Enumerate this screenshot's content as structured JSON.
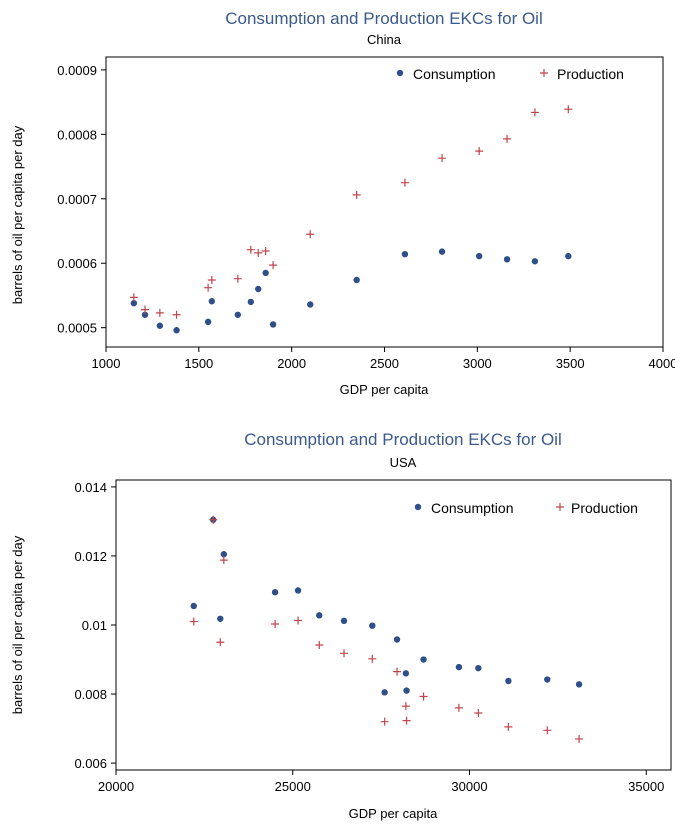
{
  "colors": {
    "consumption": "#2f4f8a",
    "production": "#c0464a",
    "title": "#3b5a8c"
  },
  "chart_data": [
    {
      "type": "scatter",
      "title": "Consumption and Production EKCs for Oil",
      "subtitle": "China",
      "xlabel": "GDP per capita",
      "ylabel": "barrels of oil per capita per day",
      "xlim": [
        1000,
        4000
      ],
      "ylim": [
        0.00047,
        0.00092
      ],
      "xticks": [
        1000,
        1500,
        2000,
        2500,
        3000,
        3500,
        4000
      ],
      "xtick_labels": [
        "1000",
        "1500",
        "2000",
        "2500",
        "3000",
        "3500",
        "4000"
      ],
      "yticks": [
        0.0005,
        0.0006,
        0.0007,
        0.0008,
        0.0009
      ],
      "ytick_labels": [
        "0.0005",
        "0.0006",
        "0.0007",
        "0.0008",
        "0.0009"
      ],
      "legend_position": "top-right",
      "series": [
        {
          "name": "Consumption",
          "marker": "circle",
          "points": [
            [
              1150,
              0.000538
            ],
            [
              1210,
              0.00052
            ],
            [
              1290,
              0.000503
            ],
            [
              1380,
              0.000496
            ],
            [
              1550,
              0.000509
            ],
            [
              1570,
              0.000541
            ],
            [
              1710,
              0.00052
            ],
            [
              1780,
              0.00054
            ],
            [
              1820,
              0.00056
            ],
            [
              1860,
              0.000585
            ],
            [
              1900,
              0.000505
            ],
            [
              2100,
              0.000536
            ],
            [
              2350,
              0.000574
            ],
            [
              2610,
              0.000614
            ],
            [
              2810,
              0.000618
            ],
            [
              3010,
              0.000611
            ],
            [
              3160,
              0.000606
            ],
            [
              3310,
              0.000603
            ],
            [
              3490,
              0.000611
            ]
          ]
        },
        {
          "name": "Production",
          "marker": "plus",
          "points": [
            [
              1150,
              0.000547
            ],
            [
              1210,
              0.000528
            ],
            [
              1290,
              0.000523
            ],
            [
              1380,
              0.00052
            ],
            [
              1550,
              0.000562
            ],
            [
              1570,
              0.000574
            ],
            [
              1710,
              0.000576
            ],
            [
              1780,
              0.000621
            ],
            [
              1820,
              0.000616
            ],
            [
              1860,
              0.000619
            ],
            [
              1900,
              0.000597
            ],
            [
              2100,
              0.000645
            ],
            [
              2350,
              0.000706
            ],
            [
              2610,
              0.000725
            ],
            [
              2810,
              0.000763
            ],
            [
              3010,
              0.000774
            ],
            [
              3160,
              0.000793
            ],
            [
              3310,
              0.000834
            ],
            [
              3490,
              0.000839
            ]
          ]
        }
      ]
    },
    {
      "type": "scatter",
      "title": "Consumption and Production EKCs for Oil",
      "subtitle": "USA",
      "xlabel": "GDP per capita",
      "ylabel": "barrels of oil per capita per day",
      "xlim": [
        20000,
        35700
      ],
      "ylim": [
        0.0058,
        0.0142
      ],
      "xticks": [
        20000,
        25000,
        30000,
        35000
      ],
      "xtick_labels": [
        "20000",
        "25000",
        "30000",
        "35000"
      ],
      "yticks": [
        0.006,
        0.008,
        0.01,
        0.012,
        0.014
      ],
      "ytick_labels": [
        "0.006",
        "0.008",
        "0.01",
        "0.012",
        "0.014"
      ],
      "legend_position": "top-right",
      "series": [
        {
          "name": "Consumption",
          "marker": "circle",
          "points": [
            [
              22200,
              0.01055
            ],
            [
              22750,
              0.01305
            ],
            [
              22950,
              0.01018
            ],
            [
              23050,
              0.01205
            ],
            [
              24500,
              0.01095
            ],
            [
              25150,
              0.011
            ],
            [
              25750,
              0.01028
            ],
            [
              26450,
              0.01012
            ],
            [
              27250,
              0.00998
            ],
            [
              27600,
              0.00805
            ],
            [
              27950,
              0.00958
            ],
            [
              28200,
              0.0086
            ],
            [
              28220,
              0.0081
            ],
            [
              28700,
              0.009
            ],
            [
              29700,
              0.00878
            ],
            [
              30250,
              0.00875
            ],
            [
              31100,
              0.00838
            ],
            [
              32200,
              0.00842
            ],
            [
              33100,
              0.00828
            ]
          ]
        },
        {
          "name": "Production",
          "marker": "plus",
          "points": [
            [
              22200,
              0.0101
            ],
            [
              22750,
              0.01305
            ],
            [
              22950,
              0.0095
            ],
            [
              23050,
              0.01188
            ],
            [
              24500,
              0.01003
            ],
            [
              25150,
              0.01013
            ],
            [
              25750,
              0.00942
            ],
            [
              26450,
              0.00918
            ],
            [
              27250,
              0.00902
            ],
            [
              27600,
              0.0072
            ],
            [
              27950,
              0.00865
            ],
            [
              28200,
              0.00765
            ],
            [
              28220,
              0.00723
            ],
            [
              28700,
              0.00793
            ],
            [
              29700,
              0.0076
            ],
            [
              30250,
              0.00745
            ],
            [
              31100,
              0.00705
            ],
            [
              32200,
              0.00695
            ],
            [
              33100,
              0.0067
            ]
          ]
        }
      ]
    }
  ]
}
